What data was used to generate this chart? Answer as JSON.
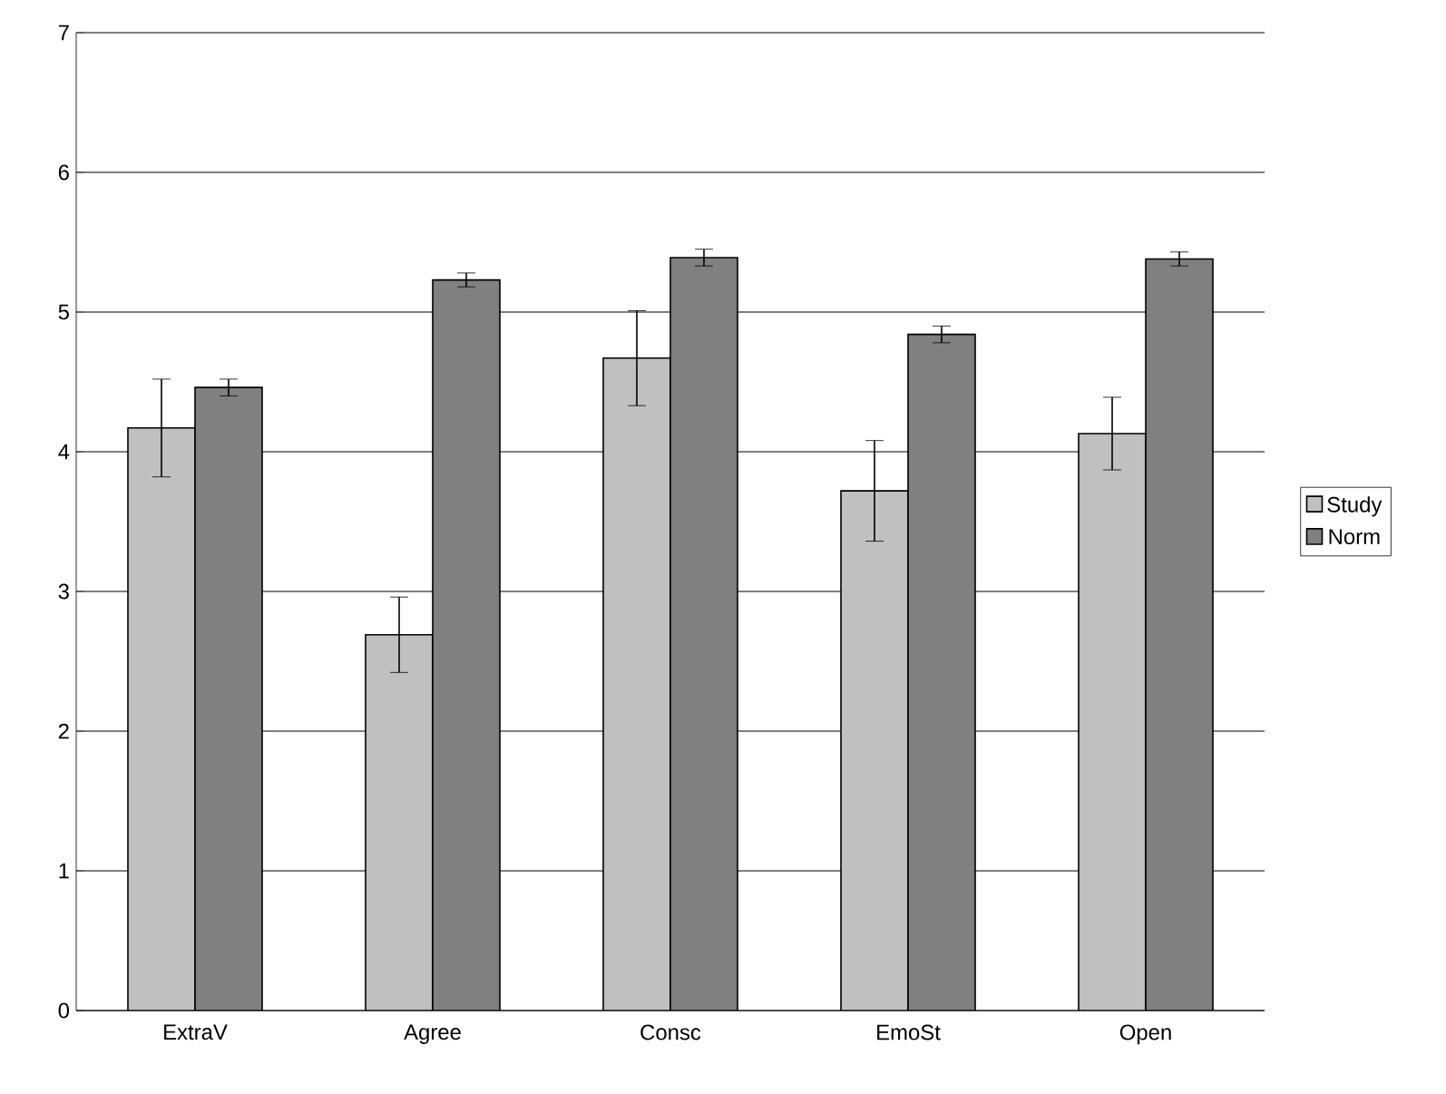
{
  "chart_data": {
    "type": "bar",
    "categories": [
      "ExtraV",
      "Agree",
      "Consc",
      "EmoSt",
      "Open"
    ],
    "series": [
      {
        "name": "Study",
        "color": "#c0c0c0",
        "values": [
          4.17,
          2.69,
          4.67,
          3.72,
          4.13
        ],
        "errors": [
          0.35,
          0.27,
          0.34,
          0.36,
          0.26
        ]
      },
      {
        "name": "Norm",
        "color": "#808080",
        "values": [
          4.46,
          5.23,
          5.39,
          4.84,
          5.38
        ],
        "errors": [
          0.06,
          0.05,
          0.06,
          0.06,
          0.05
        ]
      }
    ],
    "ylim": [
      0,
      7
    ],
    "yticks": [
      0,
      1,
      2,
      3,
      4,
      5,
      6,
      7
    ],
    "grid": "y",
    "legend": "right"
  }
}
